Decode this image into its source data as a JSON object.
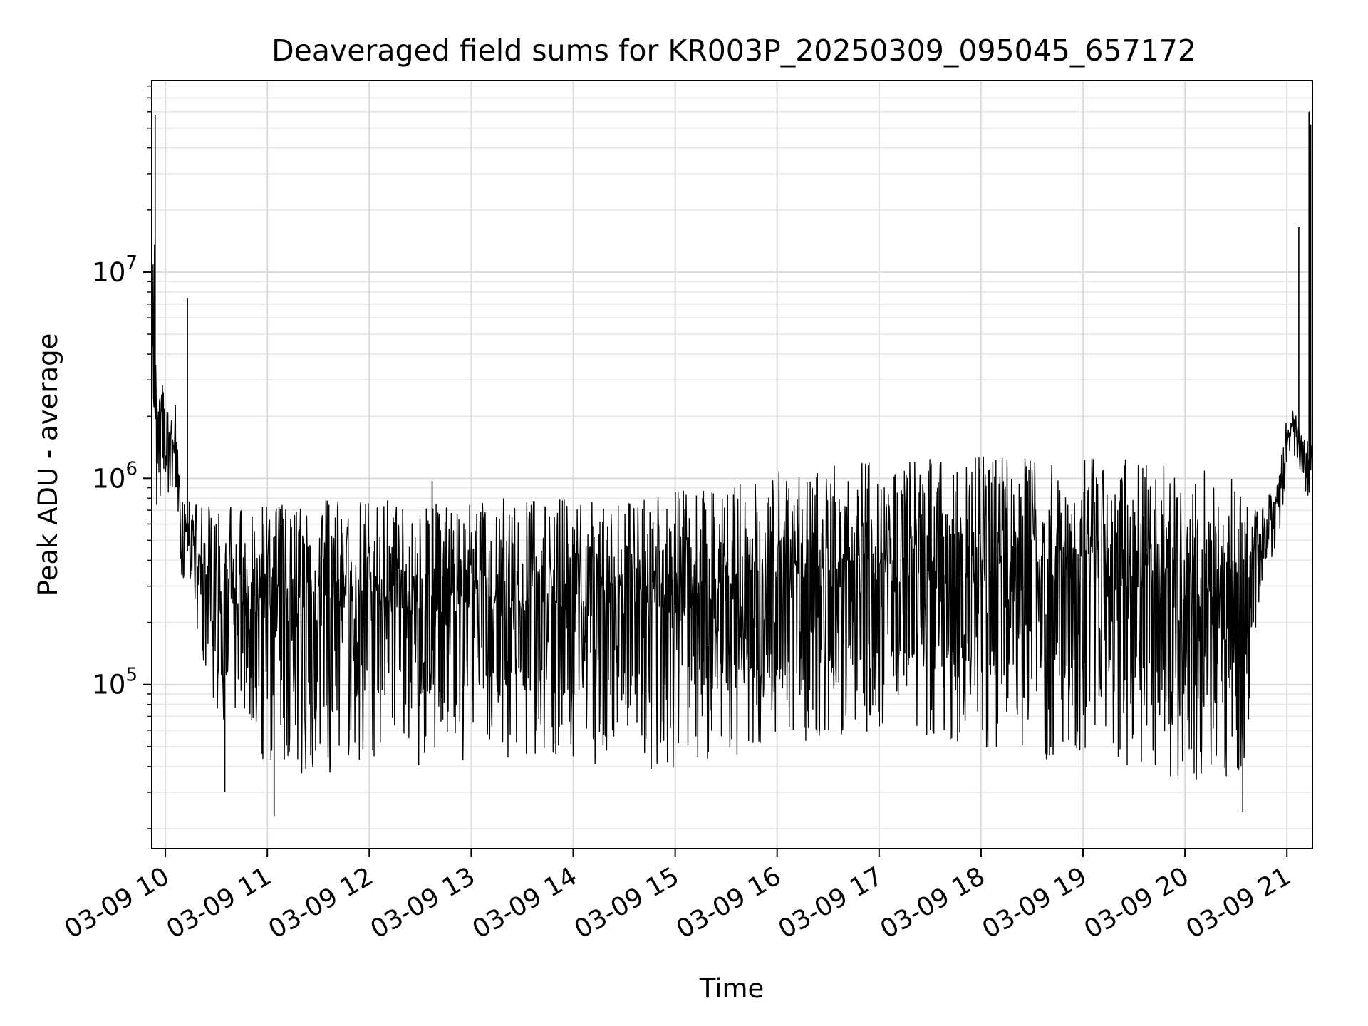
{
  "chart_data": {
    "type": "line",
    "title": "Deaveraged field sums for KR003P_20250309_095045_657172",
    "xlabel": "Time",
    "ylabel": "Peak ADU - average",
    "x_axis_kind": "time",
    "y_scale": "log",
    "grid": true,
    "grid_minor": true,
    "xlim": [
      "2025-03-09 09:52",
      "2025-03-09 21:15"
    ],
    "ylim": [
      16000,
      85000000
    ],
    "x_ticks": [
      {
        "value": "2025-03-09 10:00",
        "label": "03-09 10"
      },
      {
        "value": "2025-03-09 11:00",
        "label": "03-09 11"
      },
      {
        "value": "2025-03-09 12:00",
        "label": "03-09 12"
      },
      {
        "value": "2025-03-09 13:00",
        "label": "03-09 13"
      },
      {
        "value": "2025-03-09 14:00",
        "label": "03-09 14"
      },
      {
        "value": "2025-03-09 15:00",
        "label": "03-09 15"
      },
      {
        "value": "2025-03-09 16:00",
        "label": "03-09 16"
      },
      {
        "value": "2025-03-09 17:00",
        "label": "03-09 17"
      },
      {
        "value": "2025-03-09 18:00",
        "label": "03-09 18"
      },
      {
        "value": "2025-03-09 19:00",
        "label": "03-09 19"
      },
      {
        "value": "2025-03-09 20:00",
        "label": "03-09 20"
      },
      {
        "value": "2025-03-09 21:00",
        "label": "03-09 21"
      }
    ],
    "y_ticks": [
      {
        "value": 100000,
        "base": "10",
        "exp": "5"
      },
      {
        "value": 1000000,
        "base": "10",
        "exp": "6"
      },
      {
        "value": 10000000,
        "base": "10",
        "exp": "7"
      }
    ],
    "series": [
      {
        "line_color": "#000000",
        "envelope": [
          {
            "t": "2025-03-09 09:52",
            "low": 400000,
            "high": 5000000
          },
          {
            "t": "2025-03-09 09:53",
            "low": 900000,
            "high": 55000000
          },
          {
            "t": "2025-03-09 09:55",
            "low": 700000,
            "high": 2200000
          },
          {
            "t": "2025-03-09 09:58",
            "low": 800000,
            "high": 3000000
          },
          {
            "t": "2025-03-09 10:03",
            "low": 700000,
            "high": 2000000
          },
          {
            "t": "2025-03-09 10:06",
            "low": 900000,
            "high": 2300000
          },
          {
            "t": "2025-03-09 10:09",
            "low": 350000,
            "high": 800000
          },
          {
            "t": "2025-03-09 10:30",
            "low": 60000,
            "high": 720000
          },
          {
            "t": "2025-03-09 11:00",
            "low": 40000,
            "high": 760000
          },
          {
            "t": "2025-03-09 11:30",
            "low": 35000,
            "high": 780000
          },
          {
            "t": "2025-03-09 12:00",
            "low": 45000,
            "high": 780000
          },
          {
            "t": "2025-03-09 12:30",
            "low": 40000,
            "high": 790000
          },
          {
            "t": "2025-03-09 13:00",
            "low": 42000,
            "high": 790000
          },
          {
            "t": "2025-03-09 13:30",
            "low": 45000,
            "high": 800000
          },
          {
            "t": "2025-03-09 14:00",
            "low": 42000,
            "high": 820000
          },
          {
            "t": "2025-03-09 14:30",
            "low": 40000,
            "high": 830000
          },
          {
            "t": "2025-03-09 14:58",
            "low": 36000,
            "high": 820000
          },
          {
            "t": "2025-03-09 15:00",
            "low": 40000,
            "high": 880000
          },
          {
            "t": "2025-03-09 15:30",
            "low": 45000,
            "high": 920000
          },
          {
            "t": "2025-03-09 16:00",
            "low": 50000,
            "high": 1100000
          },
          {
            "t": "2025-03-09 16:30",
            "low": 55000,
            "high": 1150000
          },
          {
            "t": "2025-03-09 17:00",
            "low": 55000,
            "high": 1200000
          },
          {
            "t": "2025-03-09 17:30",
            "low": 55000,
            "high": 1250000
          },
          {
            "t": "2025-03-09 18:00",
            "low": 50000,
            "high": 1300000
          },
          {
            "t": "2025-03-09 18:30",
            "low": 45000,
            "high": 1300000
          },
          {
            "t": "2025-03-09 19:00",
            "low": 40000,
            "high": 1300000
          },
          {
            "t": "2025-03-09 19:30",
            "low": 38000,
            "high": 1250000
          },
          {
            "t": "2025-03-09 20:00",
            "low": 32000,
            "high": 1150000
          },
          {
            "t": "2025-03-09 20:20",
            "low": 32000,
            "high": 1100000
          },
          {
            "t": "2025-03-09 20:35",
            "low": 40000,
            "high": 900000
          },
          {
            "t": "2025-03-09 20:45",
            "low": 300000,
            "high": 800000
          },
          {
            "t": "2025-03-09 20:55",
            "low": 500000,
            "high": 1000000
          },
          {
            "t": "2025-03-09 21:00",
            "low": 1000000,
            "high": 2000000
          },
          {
            "t": "2025-03-09 21:05",
            "low": 1300000,
            "high": 2200000
          },
          {
            "t": "2025-03-09 21:10",
            "low": 900000,
            "high": 1600000
          },
          {
            "t": "2025-03-09 21:13",
            "low": 800000,
            "high": 1500000
          },
          {
            "t": "2025-03-09 21:15",
            "low": 800000,
            "high": 1500000
          }
        ],
        "spikes": [
          {
            "t": "2025-03-09 09:52",
            "value": 45000000
          },
          {
            "t": "2025-03-09 09:54",
            "value": 58000000
          },
          {
            "t": "2025-03-09 10:13",
            "value": 7500000
          },
          {
            "t": "2025-03-09 10:35",
            "value": 30000
          },
          {
            "t": "2025-03-09 11:04",
            "value": 23000
          },
          {
            "t": "2025-03-09 12:37",
            "value": 970000
          },
          {
            "t": "2025-03-09 20:34",
            "value": 24000
          },
          {
            "t": "2025-03-09 21:07",
            "value": 16500000
          },
          {
            "t": "2025-03-09 21:13",
            "value": 60000000
          },
          {
            "t": "2025-03-09 21:14",
            "value": 52000000
          }
        ]
      }
    ]
  }
}
